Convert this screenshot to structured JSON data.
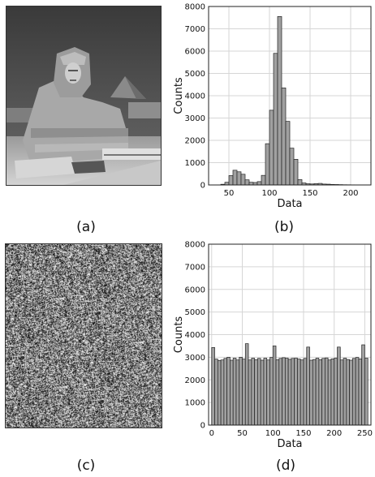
{
  "panel_labels": {
    "a": "(a)",
    "b": "(b)",
    "c": "(c)",
    "d": "(d)"
  },
  "images": {
    "a": {
      "name": "grayscale photograph of the Great Sphinx with a pyramid behind"
    },
    "c": {
      "name": "encrypted noise-like image"
    }
  },
  "chart_data": [
    {
      "type": "bar",
      "panel": "b",
      "xlabel": "Data",
      "ylabel": "Counts",
      "xlim": [
        25,
        225
      ],
      "ylim": [
        0,
        8000
      ],
      "xticks": [
        "50",
        "100",
        "150",
        "200"
      ],
      "xtick_values": [
        50,
        100,
        150,
        200
      ],
      "yticks": [
        "0",
        "1000",
        "2000",
        "3000",
        "4000",
        "5000",
        "6000",
        "7000",
        "8000"
      ],
      "grid": true,
      "bin_width": 5,
      "bin_starts": [
        40,
        45,
        50,
        55,
        60,
        65,
        70,
        75,
        80,
        85,
        90,
        95,
        100,
        105,
        110,
        115,
        120,
        125,
        130,
        135,
        140,
        145,
        150,
        155,
        160,
        165,
        170,
        175,
        180,
        185,
        190,
        195,
        200,
        205,
        210,
        215
      ],
      "values": [
        30,
        120,
        420,
        660,
        590,
        480,
        230,
        120,
        110,
        150,
        430,
        1850,
        3350,
        5900,
        7550,
        4350,
        2850,
        1650,
        1150,
        240,
        90,
        55,
        45,
        60,
        70,
        40,
        35,
        25,
        20,
        15,
        10,
        8,
        6,
        5,
        4,
        3
      ]
    },
    {
      "type": "bar",
      "panel": "d",
      "xlabel": "Data",
      "ylabel": "Counts",
      "xlim": [
        -5,
        260
      ],
      "ylim": [
        0,
        8000
      ],
      "xticks": [
        "0",
        "50",
        "100",
        "150",
        "200",
        "250"
      ],
      "xtick_values": [
        0,
        50,
        100,
        150,
        200,
        250
      ],
      "yticks": [
        "0",
        "1000",
        "2000",
        "3000",
        "4000",
        "5000",
        "6000",
        "7000",
        "8000"
      ],
      "grid": true,
      "bin_width": 5,
      "bin_starts": [
        0,
        5,
        10,
        15,
        20,
        25,
        30,
        35,
        40,
        45,
        50,
        55,
        60,
        65,
        70,
        75,
        80,
        85,
        90,
        95,
        100,
        105,
        110,
        115,
        120,
        125,
        130,
        135,
        140,
        145,
        150,
        155,
        160,
        165,
        170,
        175,
        180,
        185,
        190,
        195,
        200,
        205,
        210,
        215,
        220,
        225,
        230,
        235,
        240,
        245,
        250
      ],
      "values": [
        3430,
        2920,
        2860,
        2880,
        2950,
        3000,
        2870,
        2960,
        2880,
        3000,
        2920,
        3600,
        2880,
        2960,
        2890,
        2950,
        2870,
        2960,
        2880,
        2990,
        3500,
        2890,
        2950,
        2980,
        2960,
        2910,
        2950,
        2960,
        2920,
        2880,
        2950,
        3450,
        2870,
        2900,
        2960,
        2890,
        2950,
        2970,
        2880,
        2930,
        2960,
        3450,
        2880,
        2960,
        2900,
        2870,
        2950,
        2990,
        2930,
        3550,
        2960
      ]
    }
  ]
}
